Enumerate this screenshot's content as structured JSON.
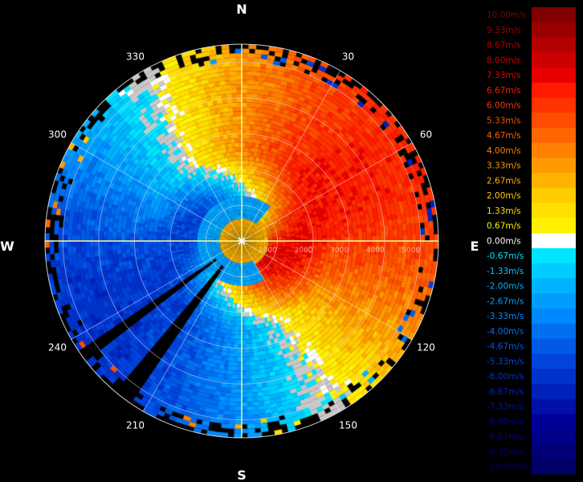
{
  "chart_data": {
    "type": "heatmap",
    "subtype": "polar radial-velocity PPI",
    "cardinals": {
      "north": "N",
      "east": "E",
      "south": "S",
      "west": "W"
    },
    "azimuth_labels": [
      {
        "az": 30,
        "text": "30"
      },
      {
        "az": 60,
        "text": "60"
      },
      {
        "az": 120,
        "text": "120"
      },
      {
        "az": 150,
        "text": "150"
      },
      {
        "az": 210,
        "text": "210"
      },
      {
        "az": 240,
        "text": "240"
      },
      {
        "az": 300,
        "text": "300"
      },
      {
        "az": 330,
        "text": "330"
      }
    ],
    "range_labels": [
      "1000",
      "2000",
      "3000",
      "4000",
      "5000"
    ],
    "range_unit_max": 5500,
    "velocity_range": [
      -10,
      10
    ],
    "pattern": {
      "description": "velocity field: positive (warm) toward north/east, negative (cool) toward south/west, swirl near center",
      "max_positive_bearing_deg": 60,
      "inner_ring_radius_m": 950,
      "inner_ring_value": -2.5,
      "blank_sectors_deg": [
        [
          232,
          236
        ],
        [
          214,
          219
        ]
      ]
    },
    "legend": [
      {
        "label": "10.00m/s",
        "value": 10.0,
        "color": "#800000"
      },
      {
        "label": "9.33m/s",
        "value": 9.33,
        "color": "#9a0000"
      },
      {
        "label": "8.67m/s",
        "value": 8.67,
        "color": "#b40000"
      },
      {
        "label": "8.00m/s",
        "value": 8.0,
        "color": "#cc0000"
      },
      {
        "label": "7.33m/s",
        "value": 7.33,
        "color": "#e60000"
      },
      {
        "label": "6.67m/s",
        "value": 6.67,
        "color": "#ff1a00"
      },
      {
        "label": "6.00m/s",
        "value": 6.0,
        "color": "#ff3300"
      },
      {
        "label": "5.33m/s",
        "value": 5.33,
        "color": "#ff4d00"
      },
      {
        "label": "4.67m/s",
        "value": 4.67,
        "color": "#ff6600"
      },
      {
        "label": "4.00m/s",
        "value": 4.0,
        "color": "#ff8000"
      },
      {
        "label": "3.33m/s",
        "value": 3.33,
        "color": "#ff9900"
      },
      {
        "label": "2.67m/s",
        "value": 2.67,
        "color": "#ffb300"
      },
      {
        "label": "2.00m/s",
        "value": 2.0,
        "color": "#ffcc00"
      },
      {
        "label": "1.33m/s",
        "value": 1.33,
        "color": "#ffe000"
      },
      {
        "label": "0.67m/s",
        "value": 0.67,
        "color": "#fff200"
      },
      {
        "label": "0.00m/s",
        "value": 0.0,
        "color": "#ffffff"
      },
      {
        "label": "-0.67m/s",
        "value": -0.67,
        "color": "#00e5ff"
      },
      {
        "label": "-1.33m/s",
        "value": -1.33,
        "color": "#00ccff"
      },
      {
        "label": "-2.00m/s",
        "value": -2.0,
        "color": "#00b3ff"
      },
      {
        "label": "-2.67m/s",
        "value": -2.67,
        "color": "#009dff"
      },
      {
        "label": "-3.33m/s",
        "value": -3.33,
        "color": "#0088ff"
      },
      {
        "label": "-4.00m/s",
        "value": -4.0,
        "color": "#0070f0"
      },
      {
        "label": "-4.67m/s",
        "value": -4.67,
        "color": "#005ae6"
      },
      {
        "label": "-5.33m/s",
        "value": -5.33,
        "color": "#0044dd"
      },
      {
        "label": "-6.00m/s",
        "value": -6.0,
        "color": "#0033cc"
      },
      {
        "label": "-6.67m/s",
        "value": -6.67,
        "color": "#0022bb"
      },
      {
        "label": "-7.33m/s",
        "value": -7.33,
        "color": "#0011aa"
      },
      {
        "label": "-8.00m/s",
        "value": -8.0,
        "color": "#000099"
      },
      {
        "label": "-8.67m/s",
        "value": -8.67,
        "color": "#000088"
      },
      {
        "label": "-9.33m/s",
        "value": -9.33,
        "color": "#000077"
      },
      {
        "label": "-10.00m/s",
        "value": -10.0,
        "color": "#000066"
      }
    ],
    "colors": {
      "background": "#000000",
      "grid": "#ffffff",
      "axis": "#ffff99",
      "noise": "#c8c8c8"
    }
  }
}
